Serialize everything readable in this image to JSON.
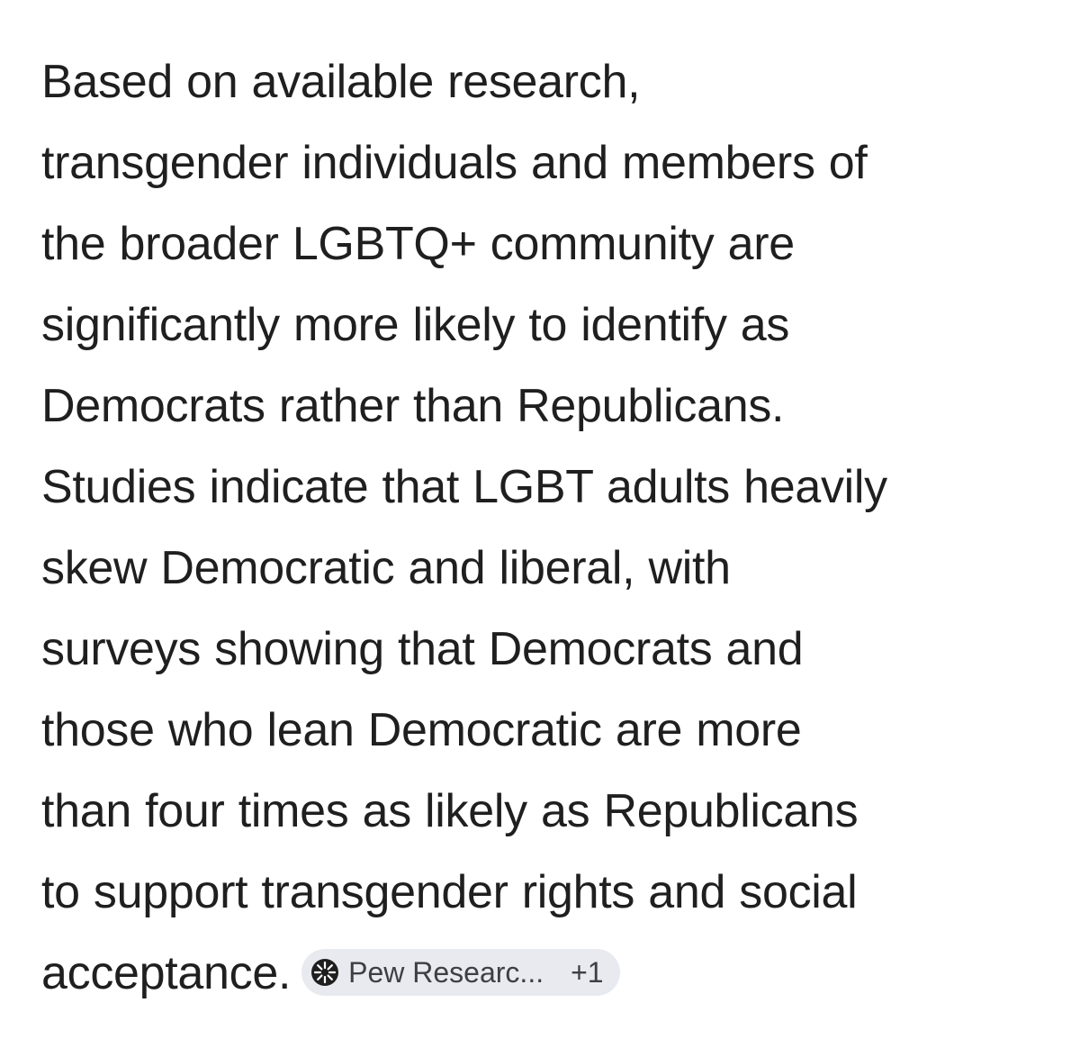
{
  "answer": {
    "lines": [
      "Based on available research,",
      "transgender individuals and members of",
      "the broader LGBTQ+ community are",
      "significantly more likely to identify as",
      "Democrats rather than Republicans.",
      "Studies indicate that LGBT adults heavily",
      "skew Democratic and liberal, with",
      "surveys showing that Democrats and",
      "those who lean Democratic are more",
      "than four times as likely as Republicans",
      "to support transgender rights and social",
      "acceptance."
    ]
  },
  "source_chip": {
    "icon": "pew-research-logo-icon",
    "label": "Pew Researc...",
    "more_count": "+1"
  },
  "colors": {
    "text": "#1f1f1f",
    "chip_background": "#e9eaf0",
    "chip_text": "#3c4043"
  }
}
